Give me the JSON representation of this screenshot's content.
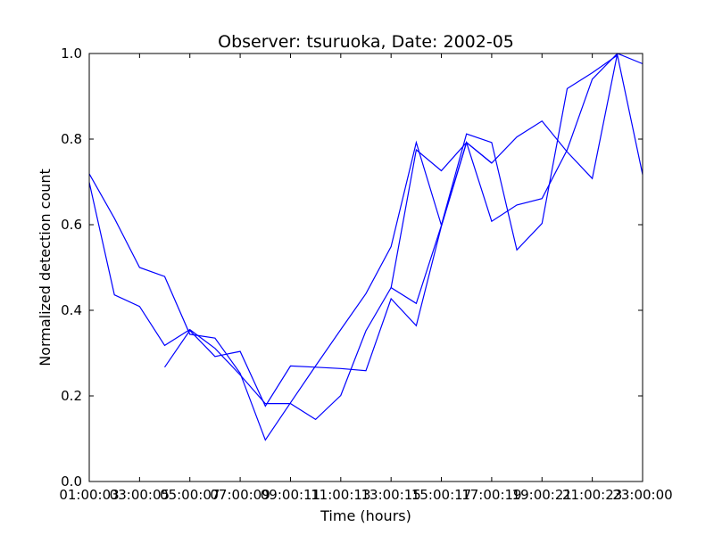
{
  "chart_data": {
    "type": "line",
    "title": "Observer: tsuruoka, Date: 2002-05",
    "xlabel": "Time (hours)",
    "ylabel": "Normalized detection count",
    "xlim": [
      1,
      23
    ],
    "ylim": [
      0,
      1.0
    ],
    "x_ticks": [
      1,
      3,
      5,
      7,
      9,
      11,
      13,
      15,
      17,
      19,
      21,
      23
    ],
    "x_tick_labels": [
      "01:00:00",
      "03:00:00",
      "05:00:00",
      "07:00:00",
      "09:00:00",
      "11:00:00",
      "13:00:00",
      "15:00:00",
      "17:00:00",
      "19:00:00",
      "21:00:00",
      "23:00:00"
    ],
    "x_tick_labels_overlap": [
      "01:00:03",
      "03:00:05",
      "05:00:07",
      "07:00:09",
      "09:00:11",
      "11:00:13",
      "13:00:15",
      "15:00:17",
      "17:00:19",
      "19:00:21",
      "21:00:23",
      "23:00:00"
    ],
    "y_ticks": [
      0.0,
      0.2,
      0.4,
      0.6,
      0.8,
      1.0
    ],
    "y_tick_labels": [
      "0.0",
      "0.2",
      "0.4",
      "0.6",
      "0.8",
      "1.0"
    ],
    "grid": false,
    "legend": "none",
    "line_color": "#0000ff",
    "series": [
      {
        "x": [
          4,
          5,
          6,
          7,
          8,
          9,
          10,
          11,
          12,
          13,
          14,
          15,
          16,
          17,
          18,
          19,
          20,
          21,
          22,
          23
        ],
        "values": [
          0.267,
          0.353,
          0.292,
          0.304,
          0.176,
          0.27,
          0.267,
          0.264,
          0.259,
          0.427,
          0.364,
          0.596,
          0.792,
          0.608,
          0.646,
          0.661,
          0.775,
          0.94,
          1.0,
          0.976
        ]
      },
      {
        "x": [
          1,
          2,
          3,
          4,
          5,
          6,
          7,
          8,
          9,
          10,
          11,
          12,
          13,
          14,
          15,
          16,
          17,
          18,
          19,
          20,
          21,
          22,
          23
        ],
        "values": [
          0.719,
          0.615,
          0.5,
          0.479,
          0.344,
          0.335,
          0.253,
          0.097,
          0.184,
          0.27,
          0.355,
          0.439,
          0.549,
          0.792,
          0.599,
          0.812,
          0.792,
          0.541,
          0.603,
          0.918,
          0.955,
          0.996,
          0.717
        ]
      },
      {
        "x": [
          1,
          2,
          3,
          4,
          5,
          6,
          7,
          8,
          9,
          10,
          11,
          12,
          13,
          14,
          15,
          16,
          17,
          18,
          19,
          20,
          21,
          22
        ],
        "values": [
          0.699,
          0.436,
          0.409,
          0.318,
          0.355,
          0.311,
          0.249,
          0.182,
          0.182,
          0.145,
          0.201,
          0.352,
          0.453,
          0.416,
          0.598,
          0.792,
          0.744,
          0.805,
          0.842,
          0.77,
          0.708,
          1.0
        ]
      },
      {
        "x": [
          13,
          14,
          15,
          16,
          17
        ],
        "values": [
          0.453,
          0.775,
          0.726,
          0.792,
          0.744
        ]
      }
    ]
  }
}
